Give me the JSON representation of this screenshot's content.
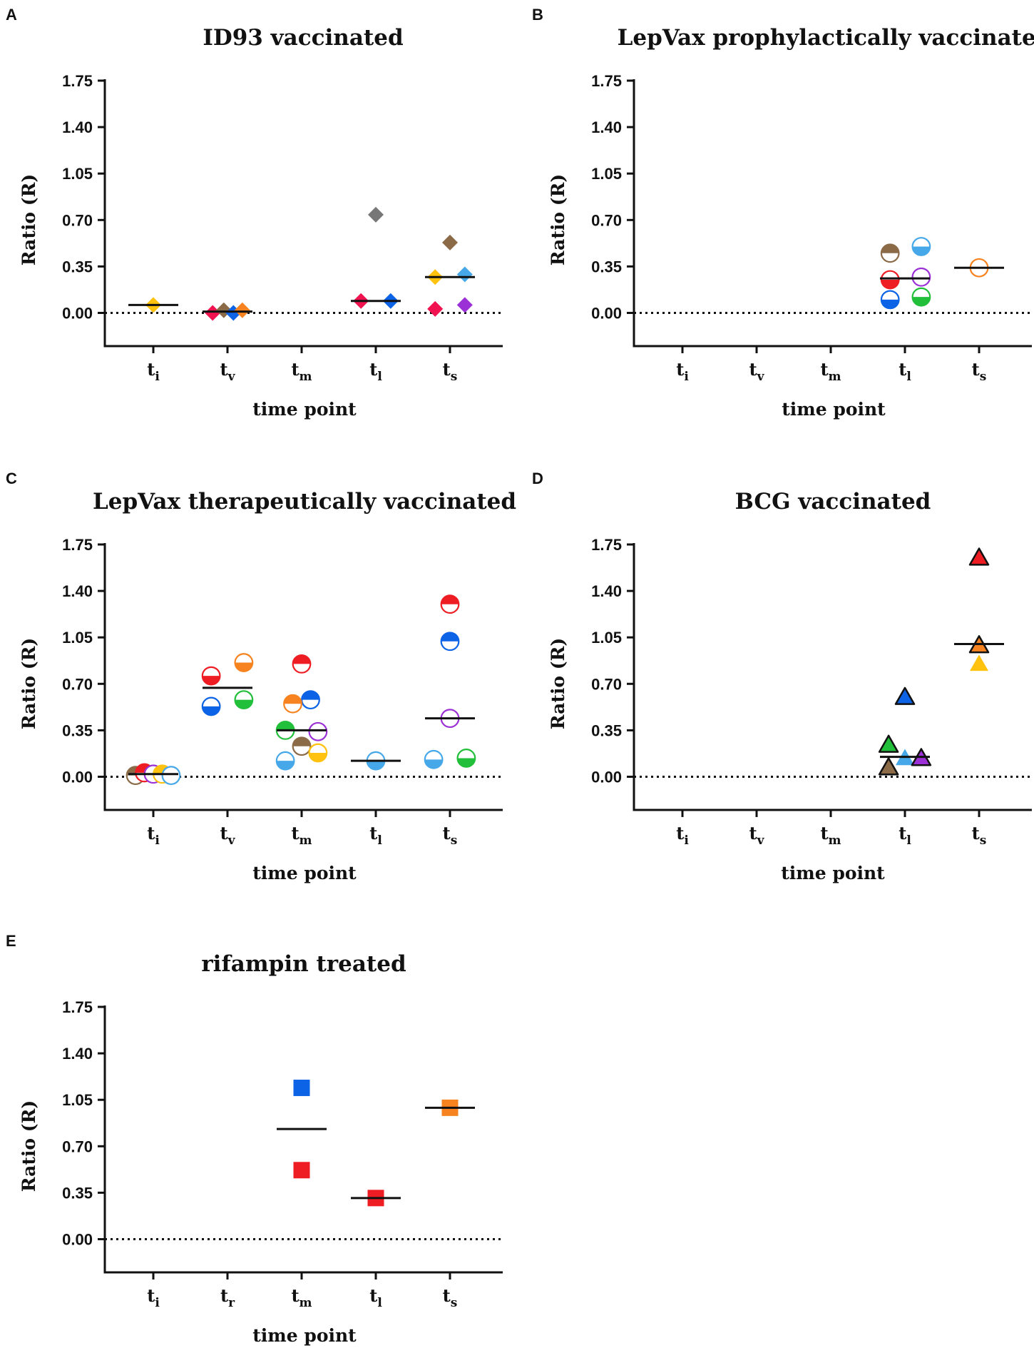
{
  "colors": {
    "red": "#ee1d23",
    "blue": "#0d63e6",
    "orange": "#f6831f",
    "green": "#22bf3a",
    "purple": "#9b30d6",
    "brown": "#8b6a48",
    "lightblue": "#46a8e8",
    "yellow": "#ffc20e",
    "gray": "#777777",
    "crimson": "#f0134f",
    "axis": "#111111"
  },
  "chart_data": [
    {
      "id": "A",
      "letter": "A",
      "type": "scatter",
      "title": "ID93 vaccinated",
      "xlabel": "time point",
      "ylabel": "Ratio (R)",
      "ylim": [
        -0.25,
        1.75
      ],
      "yticks": [
        "0.00",
        "0.35",
        "0.70",
        "1.05",
        "1.40",
        "1.75"
      ],
      "categories": [
        {
          "base": "t",
          "sub": "i"
        },
        {
          "base": "t",
          "sub": "v"
        },
        {
          "base": "t",
          "sub": "m"
        },
        {
          "base": "t",
          "sub": "l"
        },
        {
          "base": "t",
          "sub": "s"
        }
      ],
      "marker": "diamond",
      "zero_line": "dotted",
      "medians": [
        {
          "cat": 0,
          "y": 0.06
        },
        {
          "cat": 1,
          "y": 0.01
        },
        {
          "cat": 3,
          "y": 0.09
        },
        {
          "cat": 4,
          "y": 0.27
        }
      ],
      "points": [
        {
          "cat": 0,
          "dx": 0.0,
          "y": 0.06,
          "color": "yellow"
        },
        {
          "cat": 1,
          "dx": -0.2,
          "y": 0.0,
          "color": "crimson"
        },
        {
          "cat": 1,
          "dx": -0.05,
          "y": 0.02,
          "color": "brown"
        },
        {
          "cat": 1,
          "dx": 0.08,
          "y": 0.0,
          "color": "blue"
        },
        {
          "cat": 1,
          "dx": 0.2,
          "y": 0.02,
          "color": "orange"
        },
        {
          "cat": 3,
          "dx": 0.0,
          "y": 0.74,
          "color": "gray"
        },
        {
          "cat": 3,
          "dx": -0.2,
          "y": 0.09,
          "color": "crimson"
        },
        {
          "cat": 3,
          "dx": 0.2,
          "y": 0.09,
          "color": "blue"
        },
        {
          "cat": 4,
          "dx": 0.0,
          "y": 0.53,
          "color": "brown"
        },
        {
          "cat": 4,
          "dx": -0.2,
          "y": 0.27,
          "color": "yellow"
        },
        {
          "cat": 4,
          "dx": 0.2,
          "y": 0.29,
          "color": "lightblue"
        },
        {
          "cat": 4,
          "dx": -0.2,
          "y": 0.03,
          "color": "crimson"
        },
        {
          "cat": 4,
          "dx": 0.2,
          "y": 0.06,
          "color": "purple"
        }
      ]
    },
    {
      "id": "B",
      "letter": "B",
      "type": "scatter",
      "title": "LepVax prophylactically vaccinated",
      "xlabel": "time point",
      "ylabel": "Ratio (R)",
      "ylim": [
        -0.25,
        1.75
      ],
      "yticks": [
        "0.00",
        "0.35",
        "0.70",
        "1.05",
        "1.40",
        "1.75"
      ],
      "categories": [
        {
          "base": "t",
          "sub": "i"
        },
        {
          "base": "t",
          "sub": "v"
        },
        {
          "base": "t",
          "sub": "m"
        },
        {
          "base": "t",
          "sub": "l"
        },
        {
          "base": "t",
          "sub": "s"
        }
      ],
      "marker": "circle",
      "zero_line": "dotted",
      "medians": [
        {
          "cat": 3,
          "y": 0.26
        },
        {
          "cat": 4,
          "y": 0.34
        }
      ],
      "points": [
        {
          "cat": 3,
          "dx": -0.2,
          "y": 0.45,
          "color": "brown",
          "fill": "top"
        },
        {
          "cat": 3,
          "dx": 0.22,
          "y": 0.5,
          "color": "lightblue",
          "fill": "bottom"
        },
        {
          "cat": 3,
          "dx": -0.2,
          "y": 0.25,
          "color": "red",
          "fill": "bottom"
        },
        {
          "cat": 3,
          "dx": 0.22,
          "y": 0.27,
          "color": "purple",
          "fill": "none"
        },
        {
          "cat": 3,
          "dx": -0.2,
          "y": 0.1,
          "color": "blue",
          "fill": "bottom"
        },
        {
          "cat": 3,
          "dx": 0.22,
          "y": 0.12,
          "color": "green",
          "fill": "bottom"
        },
        {
          "cat": 4,
          "dx": 0.0,
          "y": 0.34,
          "color": "orange",
          "fill": "none"
        }
      ]
    },
    {
      "id": "C",
      "letter": "C",
      "type": "scatter",
      "title": "LepVax therapeutically vaccinated",
      "xlabel": "time point",
      "ylabel": "Ratio (R)",
      "ylim": [
        -0.25,
        1.75
      ],
      "yticks": [
        "0.00",
        "0.35",
        "0.70",
        "1.05",
        "1.40",
        "1.75"
      ],
      "categories": [
        {
          "base": "t",
          "sub": "i"
        },
        {
          "base": "t",
          "sub": "v"
        },
        {
          "base": "t",
          "sub": "m"
        },
        {
          "base": "t",
          "sub": "l"
        },
        {
          "base": "t",
          "sub": "s"
        }
      ],
      "marker": "circle",
      "zero_line": "dotted",
      "medians": [
        {
          "cat": 0,
          "y": 0.02
        },
        {
          "cat": 1,
          "y": 0.67
        },
        {
          "cat": 2,
          "y": 0.35
        },
        {
          "cat": 3,
          "y": 0.12
        },
        {
          "cat": 4,
          "y": 0.44
        }
      ],
      "points": [
        {
          "cat": 0,
          "dx": -0.24,
          "y": 0.01,
          "color": "brown",
          "fill": "top"
        },
        {
          "cat": 0,
          "dx": -0.12,
          "y": 0.03,
          "color": "red",
          "fill": "top"
        },
        {
          "cat": 0,
          "dx": 0.0,
          "y": 0.02,
          "color": "purple",
          "fill": "none"
        },
        {
          "cat": 0,
          "dx": 0.12,
          "y": 0.02,
          "color": "yellow",
          "fill": "top"
        },
        {
          "cat": 0,
          "dx": 0.24,
          "y": 0.01,
          "color": "lightblue",
          "fill": "none"
        },
        {
          "cat": 1,
          "dx": -0.22,
          "y": 0.76,
          "color": "red",
          "fill": "bottom"
        },
        {
          "cat": 1,
          "dx": 0.22,
          "y": 0.86,
          "color": "orange",
          "fill": "bottom"
        },
        {
          "cat": 1,
          "dx": 0.22,
          "y": 0.58,
          "color": "green",
          "fill": "bottom"
        },
        {
          "cat": 1,
          "dx": -0.22,
          "y": 0.53,
          "color": "blue",
          "fill": "bottom"
        },
        {
          "cat": 2,
          "dx": 0.0,
          "y": 0.85,
          "color": "red",
          "fill": "top"
        },
        {
          "cat": 2,
          "dx": 0.12,
          "y": 0.58,
          "color": "blue",
          "fill": "top"
        },
        {
          "cat": 2,
          "dx": -0.12,
          "y": 0.55,
          "color": "orange",
          "fill": "top"
        },
        {
          "cat": 2,
          "dx": -0.22,
          "y": 0.35,
          "color": "green",
          "fill": "top"
        },
        {
          "cat": 2,
          "dx": 0.22,
          "y": 0.34,
          "color": "purple",
          "fill": "none"
        },
        {
          "cat": 2,
          "dx": 0.0,
          "y": 0.23,
          "color": "brown",
          "fill": "top"
        },
        {
          "cat": 2,
          "dx": 0.22,
          "y": 0.18,
          "color": "yellow",
          "fill": "bottom"
        },
        {
          "cat": 2,
          "dx": -0.22,
          "y": 0.12,
          "color": "lightblue",
          "fill": "bottom"
        },
        {
          "cat": 3,
          "dx": 0.0,
          "y": 0.12,
          "color": "lightblue",
          "fill": "bottom"
        },
        {
          "cat": 4,
          "dx": 0.0,
          "y": 1.3,
          "color": "red",
          "fill": "top"
        },
        {
          "cat": 4,
          "dx": 0.0,
          "y": 1.02,
          "color": "blue",
          "fill": "top"
        },
        {
          "cat": 4,
          "dx": 0.0,
          "y": 0.44,
          "color": "purple",
          "fill": "none"
        },
        {
          "cat": 4,
          "dx": -0.22,
          "y": 0.13,
          "color": "lightblue",
          "fill": "bottom"
        },
        {
          "cat": 4,
          "dx": 0.22,
          "y": 0.14,
          "color": "green",
          "fill": "bottom"
        }
      ]
    },
    {
      "id": "D",
      "letter": "D",
      "type": "scatter",
      "title": "BCG vaccinated",
      "xlabel": "time point",
      "ylabel": "Ratio (R)",
      "ylim": [
        -0.25,
        1.75
      ],
      "yticks": [
        "0.00",
        "0.35",
        "0.70",
        "1.05",
        "1.40",
        "1.75"
      ],
      "categories": [
        {
          "base": "t",
          "sub": "i"
        },
        {
          "base": "t",
          "sub": "v"
        },
        {
          "base": "t",
          "sub": "m"
        },
        {
          "base": "t",
          "sub": "l"
        },
        {
          "base": "t",
          "sub": "s"
        }
      ],
      "marker": "triangle",
      "zero_line": "dotted",
      "medians": [
        {
          "cat": 3,
          "y": 0.15
        },
        {
          "cat": 4,
          "y": 1.0
        }
      ],
      "points": [
        {
          "cat": 3,
          "dx": 0.0,
          "y": 0.6,
          "color": "blue",
          "outline": true
        },
        {
          "cat": 3,
          "dx": -0.22,
          "y": 0.24,
          "color": "green",
          "outline": true
        },
        {
          "cat": 3,
          "dx": 0.0,
          "y": 0.14,
          "color": "lightblue",
          "outline": false
        },
        {
          "cat": 3,
          "dx": 0.22,
          "y": 0.14,
          "color": "purple",
          "outline": true
        },
        {
          "cat": 3,
          "dx": -0.22,
          "y": 0.07,
          "color": "brown",
          "outline": true
        },
        {
          "cat": 4,
          "dx": 0.0,
          "y": 1.65,
          "color": "red",
          "outline": true
        },
        {
          "cat": 4,
          "dx": 0.0,
          "y": 0.99,
          "color": "orange",
          "outline": true
        },
        {
          "cat": 4,
          "dx": 0.0,
          "y": 0.85,
          "color": "yellow",
          "outline": false
        }
      ]
    },
    {
      "id": "E",
      "letter": "E",
      "type": "scatter",
      "title": "rifampin treated",
      "xlabel": "time point",
      "ylabel": "Ratio (R)",
      "ylim": [
        -0.25,
        1.75
      ],
      "yticks": [
        "0.00",
        "0.35",
        "0.70",
        "1.05",
        "1.40",
        "1.75"
      ],
      "categories": [
        {
          "base": "t",
          "sub": "i"
        },
        {
          "base": "t",
          "sub": "r"
        },
        {
          "base": "t",
          "sub": "m"
        },
        {
          "base": "t",
          "sub": "l"
        },
        {
          "base": "t",
          "sub": "s"
        }
      ],
      "marker": "square",
      "zero_line": "dotted",
      "medians": [
        {
          "cat": 2,
          "y": 0.83
        },
        {
          "cat": 3,
          "y": 0.31
        },
        {
          "cat": 4,
          "y": 0.99
        }
      ],
      "points": [
        {
          "cat": 2,
          "dx": 0.0,
          "y": 1.14,
          "color": "blue"
        },
        {
          "cat": 2,
          "dx": 0.0,
          "y": 0.52,
          "color": "red"
        },
        {
          "cat": 3,
          "dx": 0.0,
          "y": 0.31,
          "color": "red"
        },
        {
          "cat": 4,
          "dx": 0.0,
          "y": 0.99,
          "color": "orange"
        }
      ]
    }
  ]
}
